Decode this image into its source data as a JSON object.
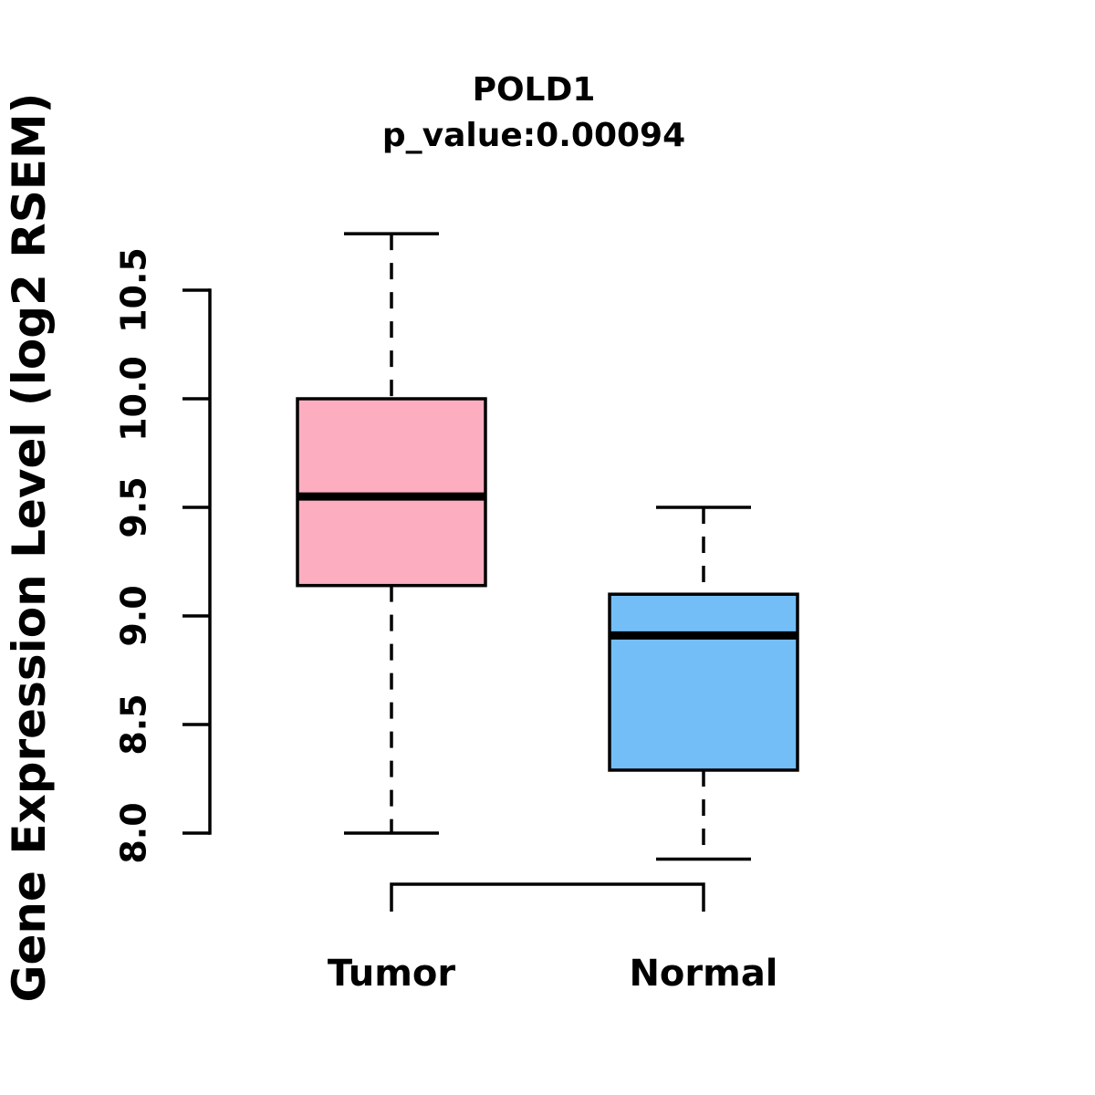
{
  "chart_data": {
    "type": "boxplot",
    "title": "POLD1",
    "subtitle": "p_value:0.00094",
    "p_value": 0.00094,
    "ylabel": "Gene Expression Level (log2 RSEM)",
    "categories": [
      "Tumor",
      "Normal"
    ],
    "series": [
      {
        "name": "Tumor",
        "lower_whisker": 8.0,
        "q1": 9.14,
        "median": 9.55,
        "q3": 10.0,
        "upper_whisker": 10.76,
        "fill_color": "#FCAEC0"
      },
      {
        "name": "Normal",
        "lower_whisker": 7.88,
        "q1": 8.29,
        "median": 8.91,
        "q3": 9.1,
        "upper_whisker": 9.5,
        "fill_color": "#74BEF8"
      }
    ],
    "yticks": [
      8.0,
      8.5,
      9.0,
      9.5,
      10.0,
      10.5
    ],
    "ytick_labels": [
      "8.0",
      "8.5",
      "9.0",
      "9.5",
      "10.0",
      "10.5"
    ],
    "ylim": [
      7.8,
      10.85
    ],
    "grid": false,
    "legend": "none",
    "line_color": "#000000",
    "background_color": "#FFFFFF"
  }
}
